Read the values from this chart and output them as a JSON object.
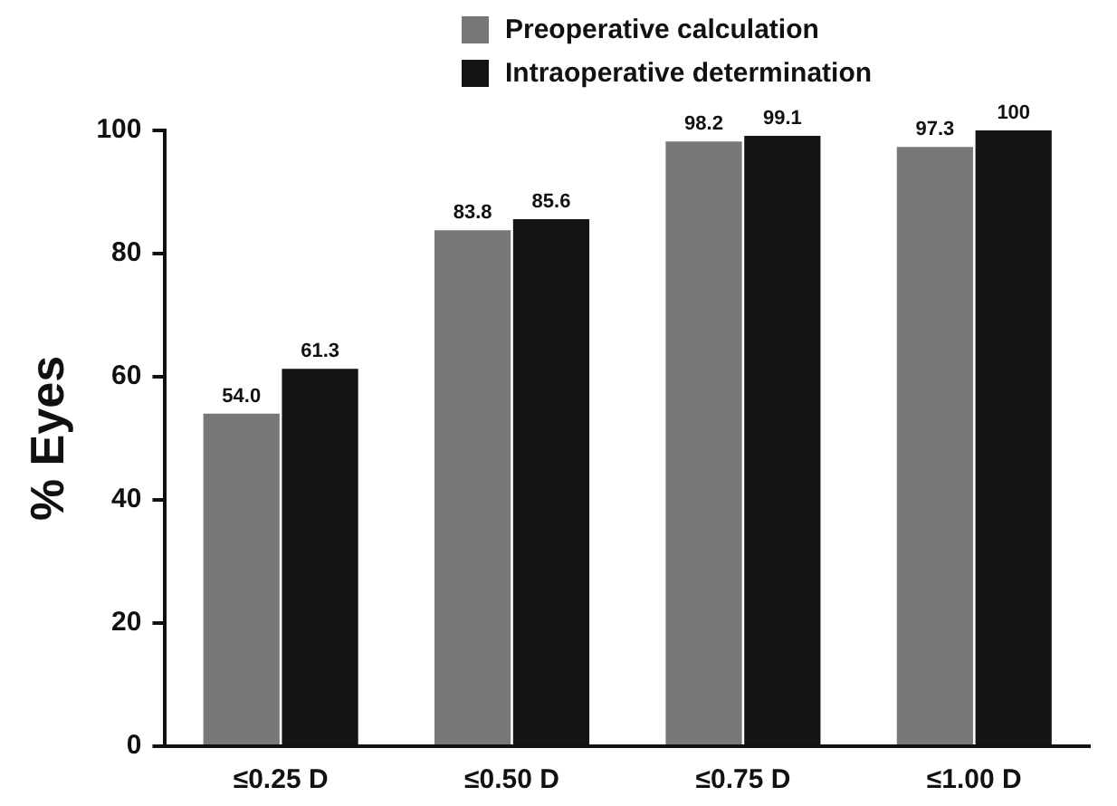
{
  "chart_data": {
    "type": "bar",
    "ylabel": "% Eyes",
    "categories": [
      "≤0.25 D",
      "≤0.50 D",
      "≤0.75 D",
      "≤1.00 D"
    ],
    "series": [
      {
        "name": "Preoperative calculation",
        "color": "#787878",
        "values": [
          54.0,
          83.8,
          98.2,
          97.3
        ],
        "value_labels": [
          "54.0",
          "83.8",
          "98.2",
          "97.3"
        ]
      },
      {
        "name": "Intraoperative determination",
        "color": "#141414",
        "values": [
          61.3,
          85.6,
          99.1,
          100
        ],
        "value_labels": [
          "61.3",
          "85.6",
          "99.1",
          "100"
        ]
      }
    ],
    "ylim": [
      0,
      100
    ],
    "yticks": [
      0,
      20,
      40,
      60,
      80,
      100
    ],
    "grid": false,
    "legend": "top"
  }
}
